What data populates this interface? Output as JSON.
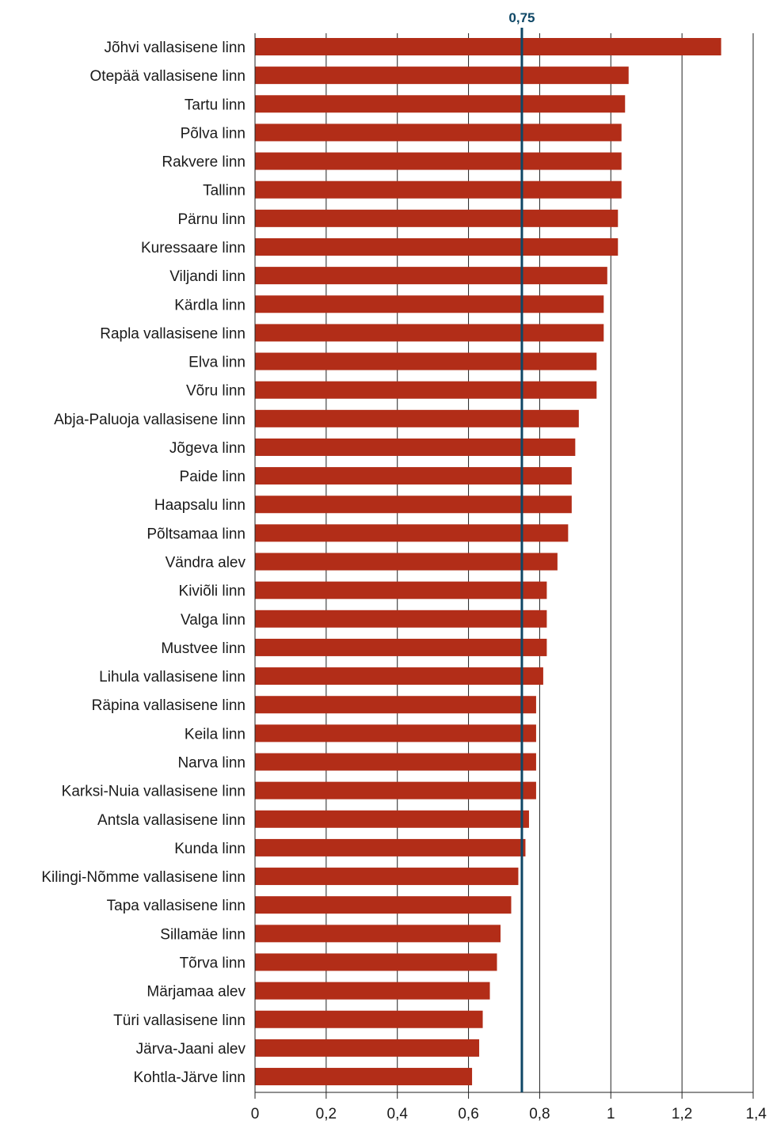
{
  "chart_data": {
    "type": "bar",
    "orientation": "horizontal",
    "categories": [
      "Jõhvi vallasisene linn",
      "Otepää vallasisene linn",
      "Tartu linn",
      "Põlva linn",
      "Rakvere linn",
      "Tallinn",
      "Pärnu linn",
      "Kuressaare linn",
      "Viljandi linn",
      "Kärdla linn",
      "Rapla vallasisene linn",
      "Elva linn",
      "Võru linn",
      "Abja-Paluoja vallasisene linn",
      "Jõgeva linn",
      "Paide linn",
      "Haapsalu linn",
      "Põltsamaa linn",
      "Vändra alev",
      "Kiviõli linn",
      "Valga linn",
      "Mustvee linn",
      "Lihula vallasisene linn",
      "Räpina vallasisene linn",
      "Keila linn",
      "Narva linn",
      "Karksi-Nuia vallasisene linn",
      "Antsla vallasisene linn",
      "Kunda linn",
      "Kilingi-Nõmme vallasisene linn",
      "Tapa vallasisene linn",
      "Sillamäe linn",
      "Tõrva linn",
      "Märjamaa alev",
      "Türi vallasisene linn",
      "Järva-Jaani alev",
      "Kohtla-Järve linn"
    ],
    "values": [
      1.31,
      1.05,
      1.04,
      1.03,
      1.03,
      1.03,
      1.02,
      1.02,
      0.99,
      0.98,
      0.98,
      0.96,
      0.96,
      0.91,
      0.9,
      0.89,
      0.89,
      0.88,
      0.85,
      0.82,
      0.82,
      0.82,
      0.81,
      0.79,
      0.79,
      0.79,
      0.79,
      0.77,
      0.76,
      0.74,
      0.72,
      0.69,
      0.68,
      0.66,
      0.64,
      0.63,
      0.61
    ],
    "xlim": [
      0,
      1.4
    ],
    "xticks": [
      0,
      0.2,
      0.4,
      0.6,
      0.8,
      1,
      1.2,
      1.4
    ],
    "xtick_labels": [
      "0",
      "0,2",
      "0,4",
      "0,6",
      "0,8",
      "1",
      "1,2",
      "1,4"
    ],
    "reference_line": {
      "value": 0.75,
      "label": "0,75"
    },
    "grid": "vertical",
    "colors": {
      "bar": "#b22d18",
      "reference": "#0e4766",
      "grid": "#222222"
    }
  }
}
